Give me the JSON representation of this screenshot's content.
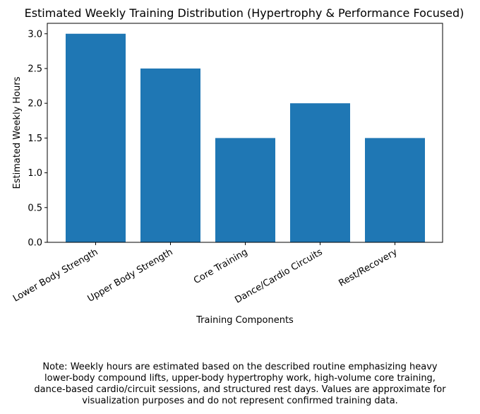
{
  "chart_data": {
    "type": "bar",
    "title": "Estimated Weekly Training Distribution (Hypertrophy & Performance Focused)",
    "xlabel": "Training Components",
    "ylabel": "Estimated Weekly Hours",
    "categories": [
      "Lower Body Strength",
      "Upper Body Strength",
      "Core Training",
      "Dance/Cardio Circuits",
      "Rest/Recovery"
    ],
    "values": [
      3.0,
      2.5,
      1.5,
      2.0,
      1.5
    ],
    "ylim": [
      0,
      3.15
    ],
    "yticks": [
      "0.0",
      "0.5",
      "1.0",
      "1.5",
      "2.0",
      "2.5",
      "3.0"
    ],
    "bar_color": "#1f77b4",
    "grid": false,
    "legend": "none"
  },
  "note": {
    "lines": [
      "Note: Weekly hours are estimated based on the described routine emphasizing heavy",
      "lower-body compound lifts, upper-body hypertrophy work, high-volume core training,",
      "dance-based cardio/circuit sessions, and structured rest days. Values are approximate for",
      "visualization purposes and do not represent confirmed training data."
    ]
  }
}
